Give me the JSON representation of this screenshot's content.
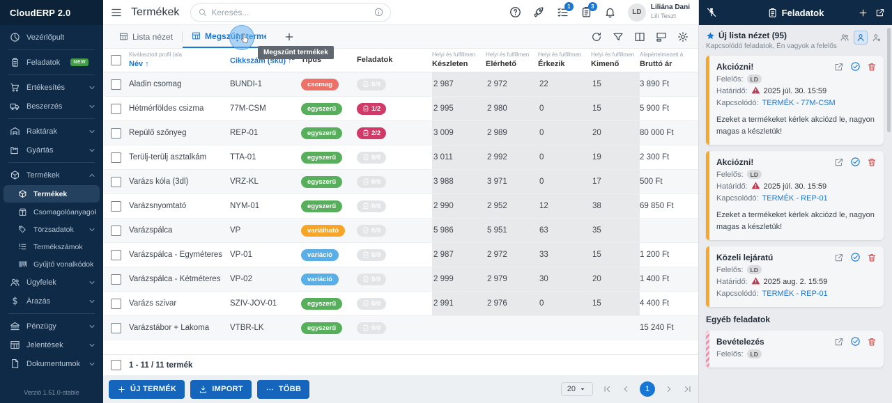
{
  "app": {
    "name": "CloudERP 2.0",
    "version": "Verzió 1.51.0-stable"
  },
  "topbar": {
    "title": "Termékek",
    "search_placeholder": "Keresés...",
    "badges": {
      "checklist": "1",
      "clipboard": "3"
    },
    "user": {
      "initials": "LD",
      "name": "Liliána Dani",
      "company": "Lili Teszt"
    }
  },
  "sidebar": {
    "items": [
      {
        "key": "vezerlopult",
        "icon": "dashboard",
        "label": "Vezérlőpult"
      },
      {
        "divider": true
      },
      {
        "key": "feladatok",
        "icon": "clipboard",
        "label": "Feladatok",
        "badge": "NEW"
      },
      {
        "divider": true
      },
      {
        "key": "ertekesites",
        "icon": "cart",
        "label": "Értékesítés",
        "chevron": "down"
      },
      {
        "key": "beszerzes",
        "icon": "truck",
        "label": "Beszerzés",
        "chevron": "down"
      },
      {
        "divider": true
      },
      {
        "key": "raktarak",
        "icon": "warehouse",
        "label": "Raktárak",
        "chevron": "down"
      },
      {
        "key": "gyartas",
        "icon": "factory",
        "label": "Gyártás",
        "chevron": "down"
      },
      {
        "divider": true
      },
      {
        "key": "termekek",
        "icon": "box",
        "label": "Termékek",
        "chevron": "up"
      },
      {
        "key": "termekek-lista",
        "icon": "box",
        "label": "Termékek",
        "sub": true,
        "active": true
      },
      {
        "key": "csomagoloanyagok",
        "icon": "package",
        "label": "Csomagolóanyagok",
        "sub": true
      },
      {
        "key": "torzsadatok",
        "icon": "tags",
        "label": "Törzsadatok",
        "sub": true,
        "chevron": "down"
      },
      {
        "key": "termekszamok",
        "icon": "listnum",
        "label": "Termékszámok",
        "sub": true
      },
      {
        "key": "gyujto-vonalkodok",
        "icon": "barcode",
        "label": "Gyűjtő vonalkódok",
        "sub": true
      },
      {
        "key": "ugyfelek",
        "icon": "people",
        "label": "Ügyfelek",
        "chevron": "down"
      },
      {
        "key": "arazas",
        "icon": "dollar",
        "label": "Árazás",
        "chevron": "down"
      },
      {
        "divider": true
      },
      {
        "key": "penzugy",
        "icon": "bank",
        "label": "Pénzügy",
        "chevron": "down"
      },
      {
        "key": "jelentesek",
        "icon": "grid",
        "label": "Jelentések",
        "chevron": "down"
      },
      {
        "key": "dokumentumok",
        "icon": "doc",
        "label": "Dokumentumok",
        "chevron": "down"
      }
    ]
  },
  "tabs": {
    "list_view": "Lista nézet",
    "discontinued": "Megszűnt termékek",
    "tooltip": "Megszűnt termékek"
  },
  "table": {
    "columns": [
      {
        "sup": "Kiválasztott profil (ala",
        "label": "Név",
        "sorted": true,
        "badge": ""
      },
      {
        "sup": "",
        "label": "Cikkszám (sku)",
        "sorted": true,
        "badge": "2"
      },
      {
        "sup": "",
        "label": "Tipus"
      },
      {
        "sup": "",
        "label": "Feladatok"
      },
      {
        "sup": "Helyi és fulfillmen",
        "label": "Készleten"
      },
      {
        "sup": "Helyi és fulfillmen",
        "label": "Elérhető"
      },
      {
        "sup": "Helyi és fulfillmen",
        "label": "Érkezik"
      },
      {
        "sup": "Helyi és fulfillmen",
        "label": "Kimenő"
      },
      {
        "sup": "Alapértelmezett á",
        "label": "Bruttó ár"
      }
    ],
    "rows": [
      {
        "name": "Aladin csomag",
        "sku": "BUNDI-1",
        "type": "csomag",
        "type_color": "red",
        "tasks": "0/0",
        "tasks_state": "muted",
        "stock": "2 987",
        "available": "2 972",
        "incoming": "22",
        "outgoing": "15",
        "price": "3 890 Ft"
      },
      {
        "name": "Hétmérföldes csizma",
        "sku": "77M-CSM",
        "type": "egyszerű",
        "type_color": "green",
        "tasks": "1/2",
        "tasks_state": "alert",
        "stock": "2 995",
        "available": "2 980",
        "incoming": "0",
        "outgoing": "15",
        "price": "5 900 Ft"
      },
      {
        "name": "Repülő szőnyeg",
        "sku": "REP-01",
        "type": "egyszerű",
        "type_color": "green",
        "tasks": "2/2",
        "tasks_state": "alert",
        "stock": "3 009",
        "available": "2 989",
        "incoming": "0",
        "outgoing": "20",
        "price": "80 000 Ft"
      },
      {
        "name": "Terülj-terülj asztalkám",
        "sku": "TTA-01",
        "type": "egyszerű",
        "type_color": "green",
        "tasks": "0/0",
        "tasks_state": "muted",
        "stock": "3 011",
        "available": "2 992",
        "incoming": "0",
        "outgoing": "19",
        "price": "2 300 Ft"
      },
      {
        "name": "Varázs kóla (3dl)",
        "sku": "VRZ-KL",
        "type": "egyszerű",
        "type_color": "green",
        "tasks": "0/0",
        "tasks_state": "muted",
        "stock": "3 988",
        "available": "3 971",
        "incoming": "0",
        "outgoing": "17",
        "price": "500 Ft"
      },
      {
        "name": "Varázsnyomtató",
        "sku": "NYM-01",
        "type": "egyszerű",
        "type_color": "green",
        "tasks": "0/0",
        "tasks_state": "muted",
        "stock": "2 990",
        "available": "2 952",
        "incoming": "12",
        "outgoing": "38",
        "price": "69 850 Ft"
      },
      {
        "name": "Varázspálca",
        "sku": "VP",
        "type": "variálható",
        "type_color": "orange",
        "tasks": "0/0",
        "tasks_state": "muted",
        "stock": "5 986",
        "available": "5 951",
        "incoming": "63",
        "outgoing": "35",
        "price": ""
      },
      {
        "name": "Varázspálca - Egyméteres",
        "sku": "VP-01",
        "type": "variáció",
        "type_color": "blue",
        "tasks": "0/0",
        "tasks_state": "muted",
        "stock": "2 987",
        "available": "2 972",
        "incoming": "33",
        "outgoing": "15",
        "price": "1 200 Ft"
      },
      {
        "name": "Varázspálca - Kétméteres",
        "sku": "VP-02",
        "type": "variáció",
        "type_color": "blue",
        "tasks": "0/0",
        "tasks_state": "muted",
        "stock": "2 999",
        "available": "2 979",
        "incoming": "30",
        "outgoing": "20",
        "price": "1 400 Ft"
      },
      {
        "name": "Varázs szivar",
        "sku": "SZIV-JOV-01",
        "type": "egyszerű",
        "type_color": "green",
        "tasks": "0/0",
        "tasks_state": "muted",
        "stock": "2 991",
        "available": "2 976",
        "incoming": "0",
        "outgoing": "15",
        "price": "4 400 Ft"
      },
      {
        "name": "Varázstábor + Lakoma",
        "sku": "VTBR-LK",
        "type": "egyszerű",
        "type_color": "green",
        "tasks": "0/0",
        "tasks_state": "muted",
        "stock": "",
        "available": "",
        "incoming": "",
        "outgoing": "",
        "price": "15 240 Ft"
      }
    ],
    "summary": "1 - 11 / 11 termék"
  },
  "actions": {
    "new_product": "ÚJ TERMÉK",
    "import": "IMPORT",
    "more": "TÖBB"
  },
  "pagination": {
    "page_size": "20",
    "page": "1"
  },
  "tasks_panel": {
    "title": "Feladatok",
    "view": {
      "title": "Új lista nézet (95)",
      "subtitle": "Kapcsolódó feladatok, Én vagyok a felelős"
    },
    "labels": {
      "owner": "Felelős:",
      "due": "Határidő:",
      "related": "Kapcsolódó:"
    },
    "sections": [
      {
        "heading": "",
        "cards": [
          {
            "title": "Akciózni!",
            "owner": "LD",
            "due": "2025 júl. 30. 15:59",
            "related": "TERMÉK - 77M-CSM",
            "body": "Ezeket a termékeket kérlek akciózd le, nagyon magas a készletük!",
            "strip": "orange"
          },
          {
            "title": "Akciózni!",
            "owner": "LD",
            "due": "2025 júl. 30. 15:59",
            "related": "TERMÉK - REP-01",
            "body": "Ezeket a termékeket kérlek akciózd le, nagyon magas a készletük!",
            "strip": "orange"
          },
          {
            "title": "Közeli lejáratú",
            "owner": "LD",
            "due": "2025 aug. 2. 15:59",
            "related": "TERMÉK - REP-01",
            "body": "",
            "strip": "orange"
          }
        ]
      },
      {
        "heading": "Egyéb feladatok",
        "cards": [
          {
            "title": "Bevételezés",
            "owner": "LD",
            "due": "",
            "related": "",
            "body": "",
            "strip": "pink"
          }
        ]
      }
    ]
  }
}
